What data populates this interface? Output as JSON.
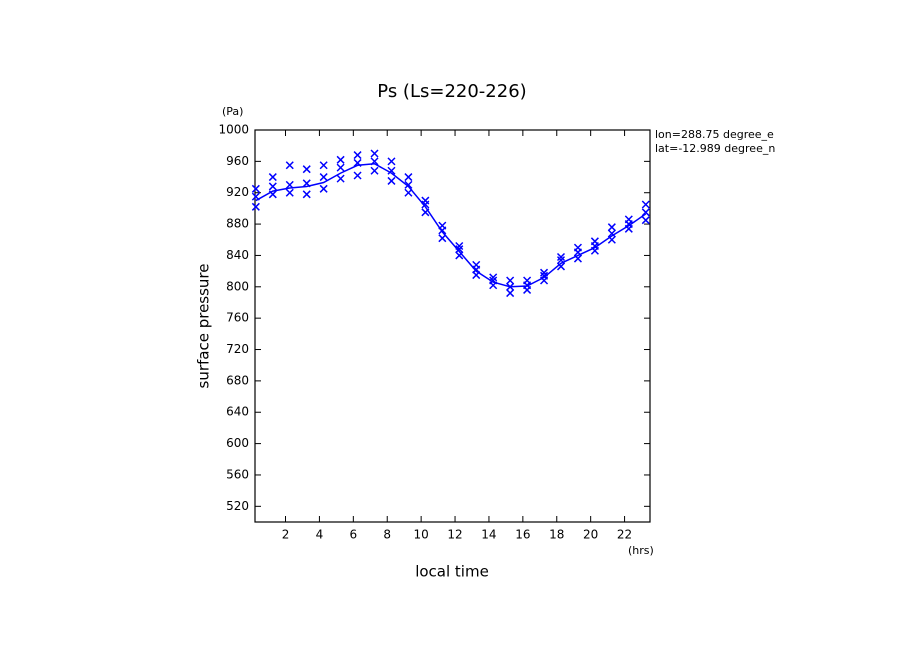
{
  "chart_data": {
    "type": "line",
    "title": "Ps (Ls=220-226)",
    "y_unit": "(Pa)",
    "x_unit": "(hrs)",
    "ylabel": "surface pressure",
    "xlabel": "local time",
    "annotations": [
      "lon=288.75 degree_e",
      "lat=-12.989 degree_n"
    ],
    "color": "#0000ff",
    "x": [
      0.25,
      1.25,
      2.25,
      3.25,
      4.25,
      5.25,
      6.25,
      7.25,
      8.25,
      9.25,
      10.25,
      11.25,
      12.25,
      13.25,
      14.25,
      15.25,
      16.25,
      17.25,
      18.25,
      19.25,
      20.25,
      21.25,
      22.25,
      23.25
    ],
    "values": [
      910,
      922,
      926,
      928,
      933,
      945,
      955,
      957,
      945,
      928,
      902,
      870,
      845,
      820,
      806,
      800,
      801,
      812,
      830,
      840,
      850,
      865,
      878,
      893
    ],
    "points": {
      "x": [
        0.25,
        0.25,
        0.25,
        1.25,
        1.25,
        1.25,
        2.25,
        2.25,
        2.25,
        3.25,
        3.25,
        3.25,
        4.25,
        4.25,
        4.25,
        5.25,
        5.25,
        5.25,
        6.25,
        6.25,
        6.25,
        7.25,
        7.25,
        7.25,
        8.25,
        8.25,
        8.25,
        9.25,
        9.25,
        9.25,
        10.25,
        10.25,
        10.25,
        11.25,
        11.25,
        11.25,
        12.25,
        12.25,
        12.25,
        13.25,
        13.25,
        13.25,
        14.25,
        14.25,
        14.25,
        15.25,
        15.25,
        15.25,
        16.25,
        16.25,
        16.25,
        17.25,
        17.25,
        17.25,
        18.25,
        18.25,
        18.25,
        19.25,
        19.25,
        19.25,
        20.25,
        20.25,
        20.25,
        21.25,
        21.25,
        21.25,
        22.25,
        22.25,
        22.25,
        23.25,
        23.25,
        23.25
      ],
      "y": [
        902,
        915,
        925,
        918,
        928,
        940,
        920,
        930,
        955,
        918,
        932,
        950,
        925,
        940,
        955,
        938,
        952,
        962,
        942,
        958,
        968,
        948,
        960,
        970,
        935,
        948,
        960,
        920,
        930,
        940,
        895,
        905,
        910,
        862,
        872,
        878,
        840,
        848,
        852,
        815,
        822,
        828,
        802,
        808,
        812,
        792,
        800,
        808,
        796,
        802,
        808,
        808,
        814,
        818,
        826,
        834,
        838,
        836,
        844,
        850,
        846,
        852,
        858,
        860,
        868,
        876,
        874,
        880,
        886,
        885,
        895,
        905
      ]
    },
    "xlim": [
      0.2,
      23.5
    ],
    "ylim": [
      500,
      1000
    ],
    "xticks": [
      2,
      4,
      6,
      8,
      10,
      12,
      14,
      16,
      18,
      20,
      22
    ],
    "yticks": [
      520,
      560,
      600,
      640,
      680,
      720,
      760,
      800,
      840,
      880,
      920,
      960,
      1000
    ]
  }
}
